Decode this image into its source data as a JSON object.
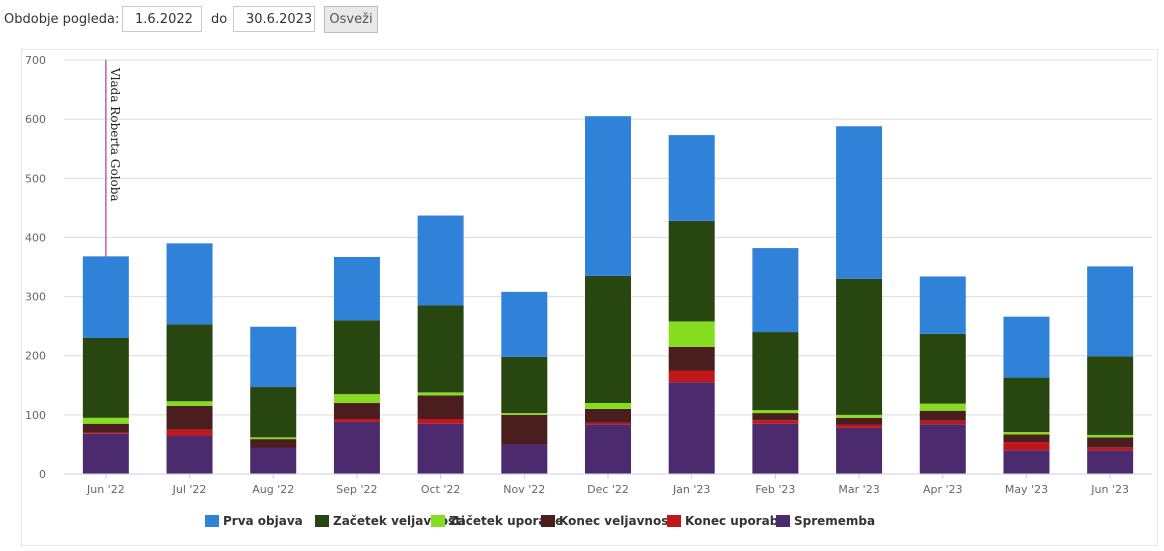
{
  "filter": {
    "period_label": "Obdobje pogleda:",
    "date_from": "1.6.2022",
    "to_label": "do",
    "date_to": "30.6.2023",
    "refresh_label": "Osveži"
  },
  "chart_data": {
    "type": "bar",
    "stacked": true,
    "categories": [
      "Jun '22",
      "Jul '22",
      "Aug '22",
      "Sep '22",
      "Oct '22",
      "Nov '22",
      "Dec '22",
      "Jan '23",
      "Feb '23",
      "Mar '23",
      "Apr '23",
      "May '23",
      "Jun '23"
    ],
    "series": [
      {
        "name": "Sprememba",
        "color": "#4b2a6e",
        "values": [
          68,
          65,
          44,
          88,
          85,
          50,
          84,
          155,
          85,
          78,
          84,
          40,
          40
        ]
      },
      {
        "name": "Konec uporabe",
        "color": "#c0161c",
        "values": [
          2,
          10,
          0,
          5,
          8,
          0,
          3,
          20,
          6,
          5,
          6,
          14,
          5
        ]
      },
      {
        "name": "Konec veljavnosti",
        "color": "#4a1e1f",
        "values": [
          15,
          40,
          15,
          27,
          40,
          50,
          23,
          40,
          12,
          12,
          17,
          13,
          17
        ]
      },
      {
        "name": "Začetek uporabe",
        "color": "#86dc1e",
        "values": [
          10,
          8,
          3,
          15,
          5,
          3,
          10,
          43,
          5,
          5,
          12,
          4,
          4
        ]
      },
      {
        "name": "Začetek veljavnosti",
        "color": "#274610",
        "values": [
          135,
          130,
          85,
          125,
          147,
          95,
          215,
          170,
          132,
          230,
          118,
          92,
          133
        ]
      },
      {
        "name": "Prva objava",
        "color": "#2f82d8",
        "values": [
          138,
          137,
          102,
          107,
          152,
          110,
          270,
          145,
          142,
          258,
          97,
          103,
          152
        ]
      }
    ],
    "legend_order": [
      "Prva objava",
      "Začetek veljavnosti",
      "Začetek uporabe",
      "Konec veljavnosti",
      "Konec uporabe",
      "Sprememba"
    ],
    "yticks": [
      "0",
      "100",
      "200",
      "300",
      "400",
      "500",
      "600",
      "700"
    ],
    "ylim": [
      0,
      700
    ],
    "grid": true,
    "legend_position": "bottom",
    "annotation": {
      "category_index": 0,
      "text": "Vlada Roberta Goloba",
      "color": "#c45bb5"
    }
  }
}
